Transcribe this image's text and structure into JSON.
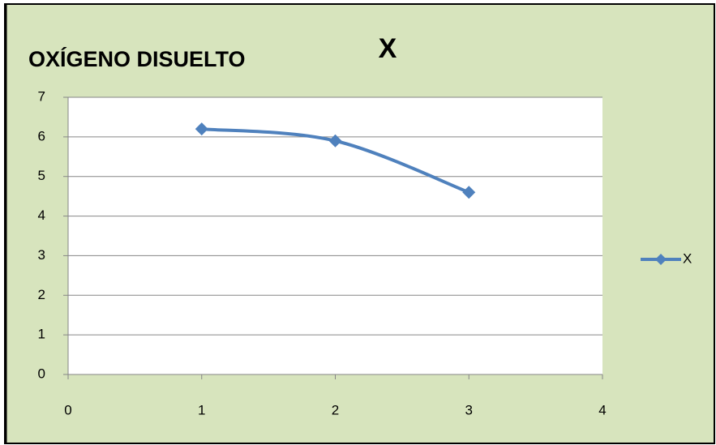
{
  "chart_data": {
    "type": "line",
    "title": "X",
    "annotation": "OXÍGENO DISUELTO",
    "x": [
      1,
      2,
      3
    ],
    "series": [
      {
        "name": "X",
        "color": "#4f81bd",
        "values": [
          6.2,
          5.9,
          4.6
        ]
      }
    ],
    "xlim": [
      0,
      4
    ],
    "xticks": [
      0,
      1,
      2,
      3,
      4
    ],
    "ylim": [
      0,
      7
    ],
    "yticks": [
      0,
      1,
      2,
      3,
      4,
      5,
      6,
      7
    ],
    "grid": true,
    "smooth": true,
    "legend": "right"
  }
}
